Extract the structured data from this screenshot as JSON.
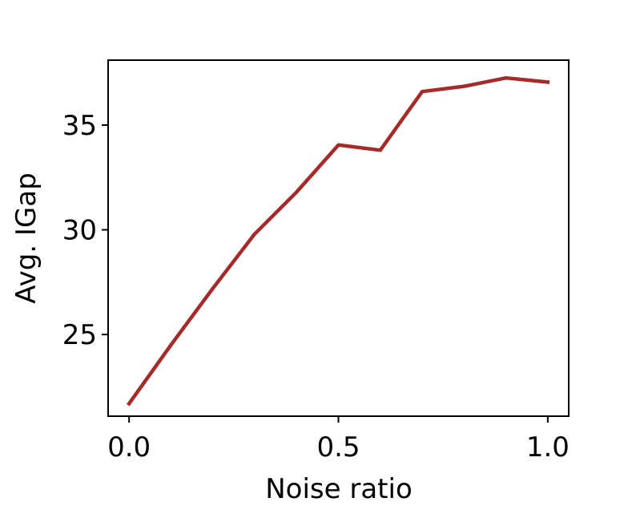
{
  "chart_data": {
    "type": "line",
    "title": "",
    "xlabel": "Noise ratio",
    "ylabel": "Avg. IGap",
    "xlim": [
      -0.05,
      1.05
    ],
    "ylim": [
      21.1,
      38.1
    ],
    "grid": false,
    "xticks": [
      0.0,
      0.5,
      1.0
    ],
    "xtick_labels": [
      "0.0",
      "0.5",
      "1.0"
    ],
    "yticks": [
      25,
      30,
      35
    ],
    "ytick_labels": [
      "25",
      "30",
      "35"
    ],
    "series": [
      {
        "color": "#a52a2a",
        "x": [
          0.0,
          0.1,
          0.2,
          0.3,
          0.4,
          0.5,
          0.6,
          0.7,
          0.8,
          0.9,
          1.0
        ],
        "y": [
          21.7,
          24.5,
          27.2,
          29.8,
          31.8,
          34.05,
          33.8,
          36.6,
          36.85,
          37.25,
          37.05
        ]
      }
    ]
  }
}
